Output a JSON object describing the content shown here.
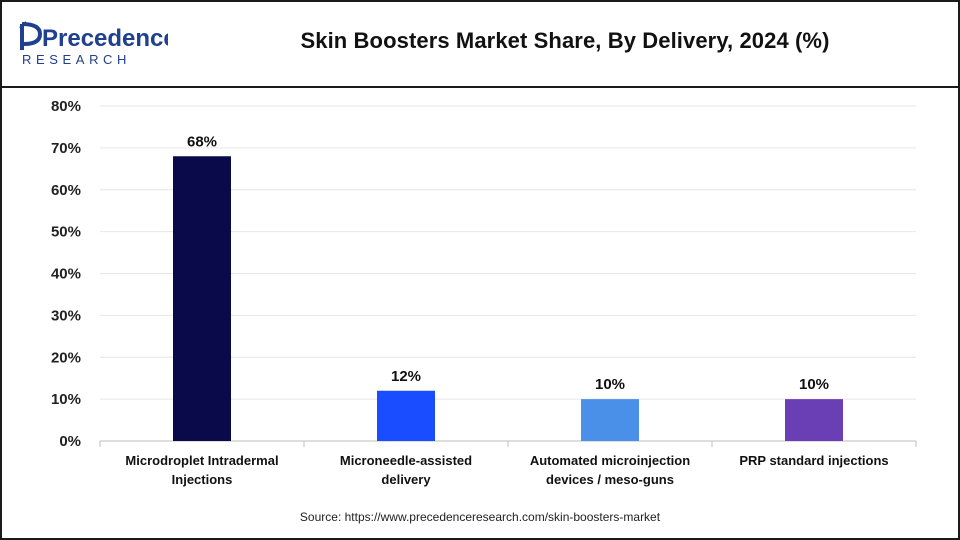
{
  "logo": {
    "line1": "Precedence",
    "line2": "RESEARCH",
    "icon": "precedence-research-logo"
  },
  "header": {
    "title": "Skin Boosters Market Share, By Delivery, 2024 (%)"
  },
  "chart_data": {
    "type": "bar",
    "categories": [
      [
        "Microdroplet Intradermal",
        "Injections"
      ],
      [
        "Microneedle-assisted",
        "delivery"
      ],
      [
        "Automated microinjection",
        "devices / meso-guns"
      ],
      [
        "PRP standard injections"
      ]
    ],
    "values": [
      68,
      12,
      10,
      10
    ],
    "data_labels": [
      "68%",
      "12%",
      "10%",
      "10%"
    ],
    "bar_colors": [
      "#0a0a4a",
      "#1a4dff",
      "#4a90e8",
      "#6a3fb5"
    ],
    "ylim": [
      0,
      80
    ],
    "yticks": [
      0,
      10,
      20,
      30,
      40,
      50,
      60,
      70,
      80
    ],
    "ytick_labels": [
      "0%",
      "10%",
      "20%",
      "30%",
      "40%",
      "50%",
      "60%",
      "70%",
      "80%"
    ],
    "grid": true,
    "title": "Skin Boosters Market Share, By Delivery, 2024 (%)",
    "xlabel": "",
    "ylabel": ""
  },
  "footer": {
    "source": "Source: https://www.precedenceresearch.com/skin-boosters-market"
  },
  "colors": {
    "logo_blue": "#1f3f8f",
    "border": "#1a1a1a",
    "grid": "#e6e6e6"
  }
}
